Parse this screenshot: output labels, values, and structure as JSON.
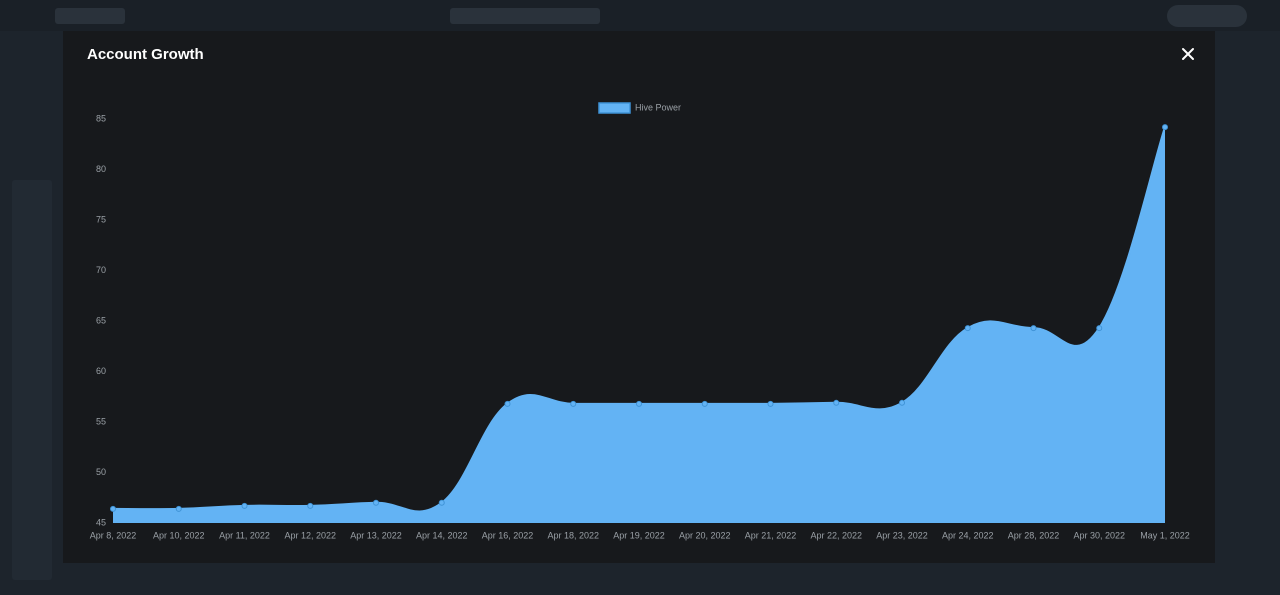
{
  "modal": {
    "title": "Account Growth"
  },
  "chart_data": {
    "type": "area",
    "categories": [
      "Apr 8, 2022",
      "Apr 10, 2022",
      "Apr 11, 2022",
      "Apr 12, 2022",
      "Apr 13, 2022",
      "Apr 14, 2022",
      "Apr 16, 2022",
      "Apr 18, 2022",
      "Apr 19, 2022",
      "Apr 20, 2022",
      "Apr 21, 2022",
      "Apr 22, 2022",
      "Apr 23, 2022",
      "Apr 24, 2022",
      "Apr 28, 2022",
      "Apr 30, 2022",
      "May 1, 2022"
    ],
    "series": [
      {
        "name": "Hive Power",
        "color": "#63b3f4",
        "values": [
          46.4,
          46.4,
          46.7,
          46.7,
          47.0,
          47.0,
          56.8,
          56.8,
          56.8,
          56.8,
          56.8,
          56.9,
          56.9,
          64.3,
          64.3,
          64.3,
          84.2
        ]
      }
    ],
    "ylim": [
      45,
      85
    ],
    "yticks": [
      45,
      50,
      55,
      60,
      65,
      70,
      75,
      80,
      85
    ],
    "legend": "top"
  }
}
